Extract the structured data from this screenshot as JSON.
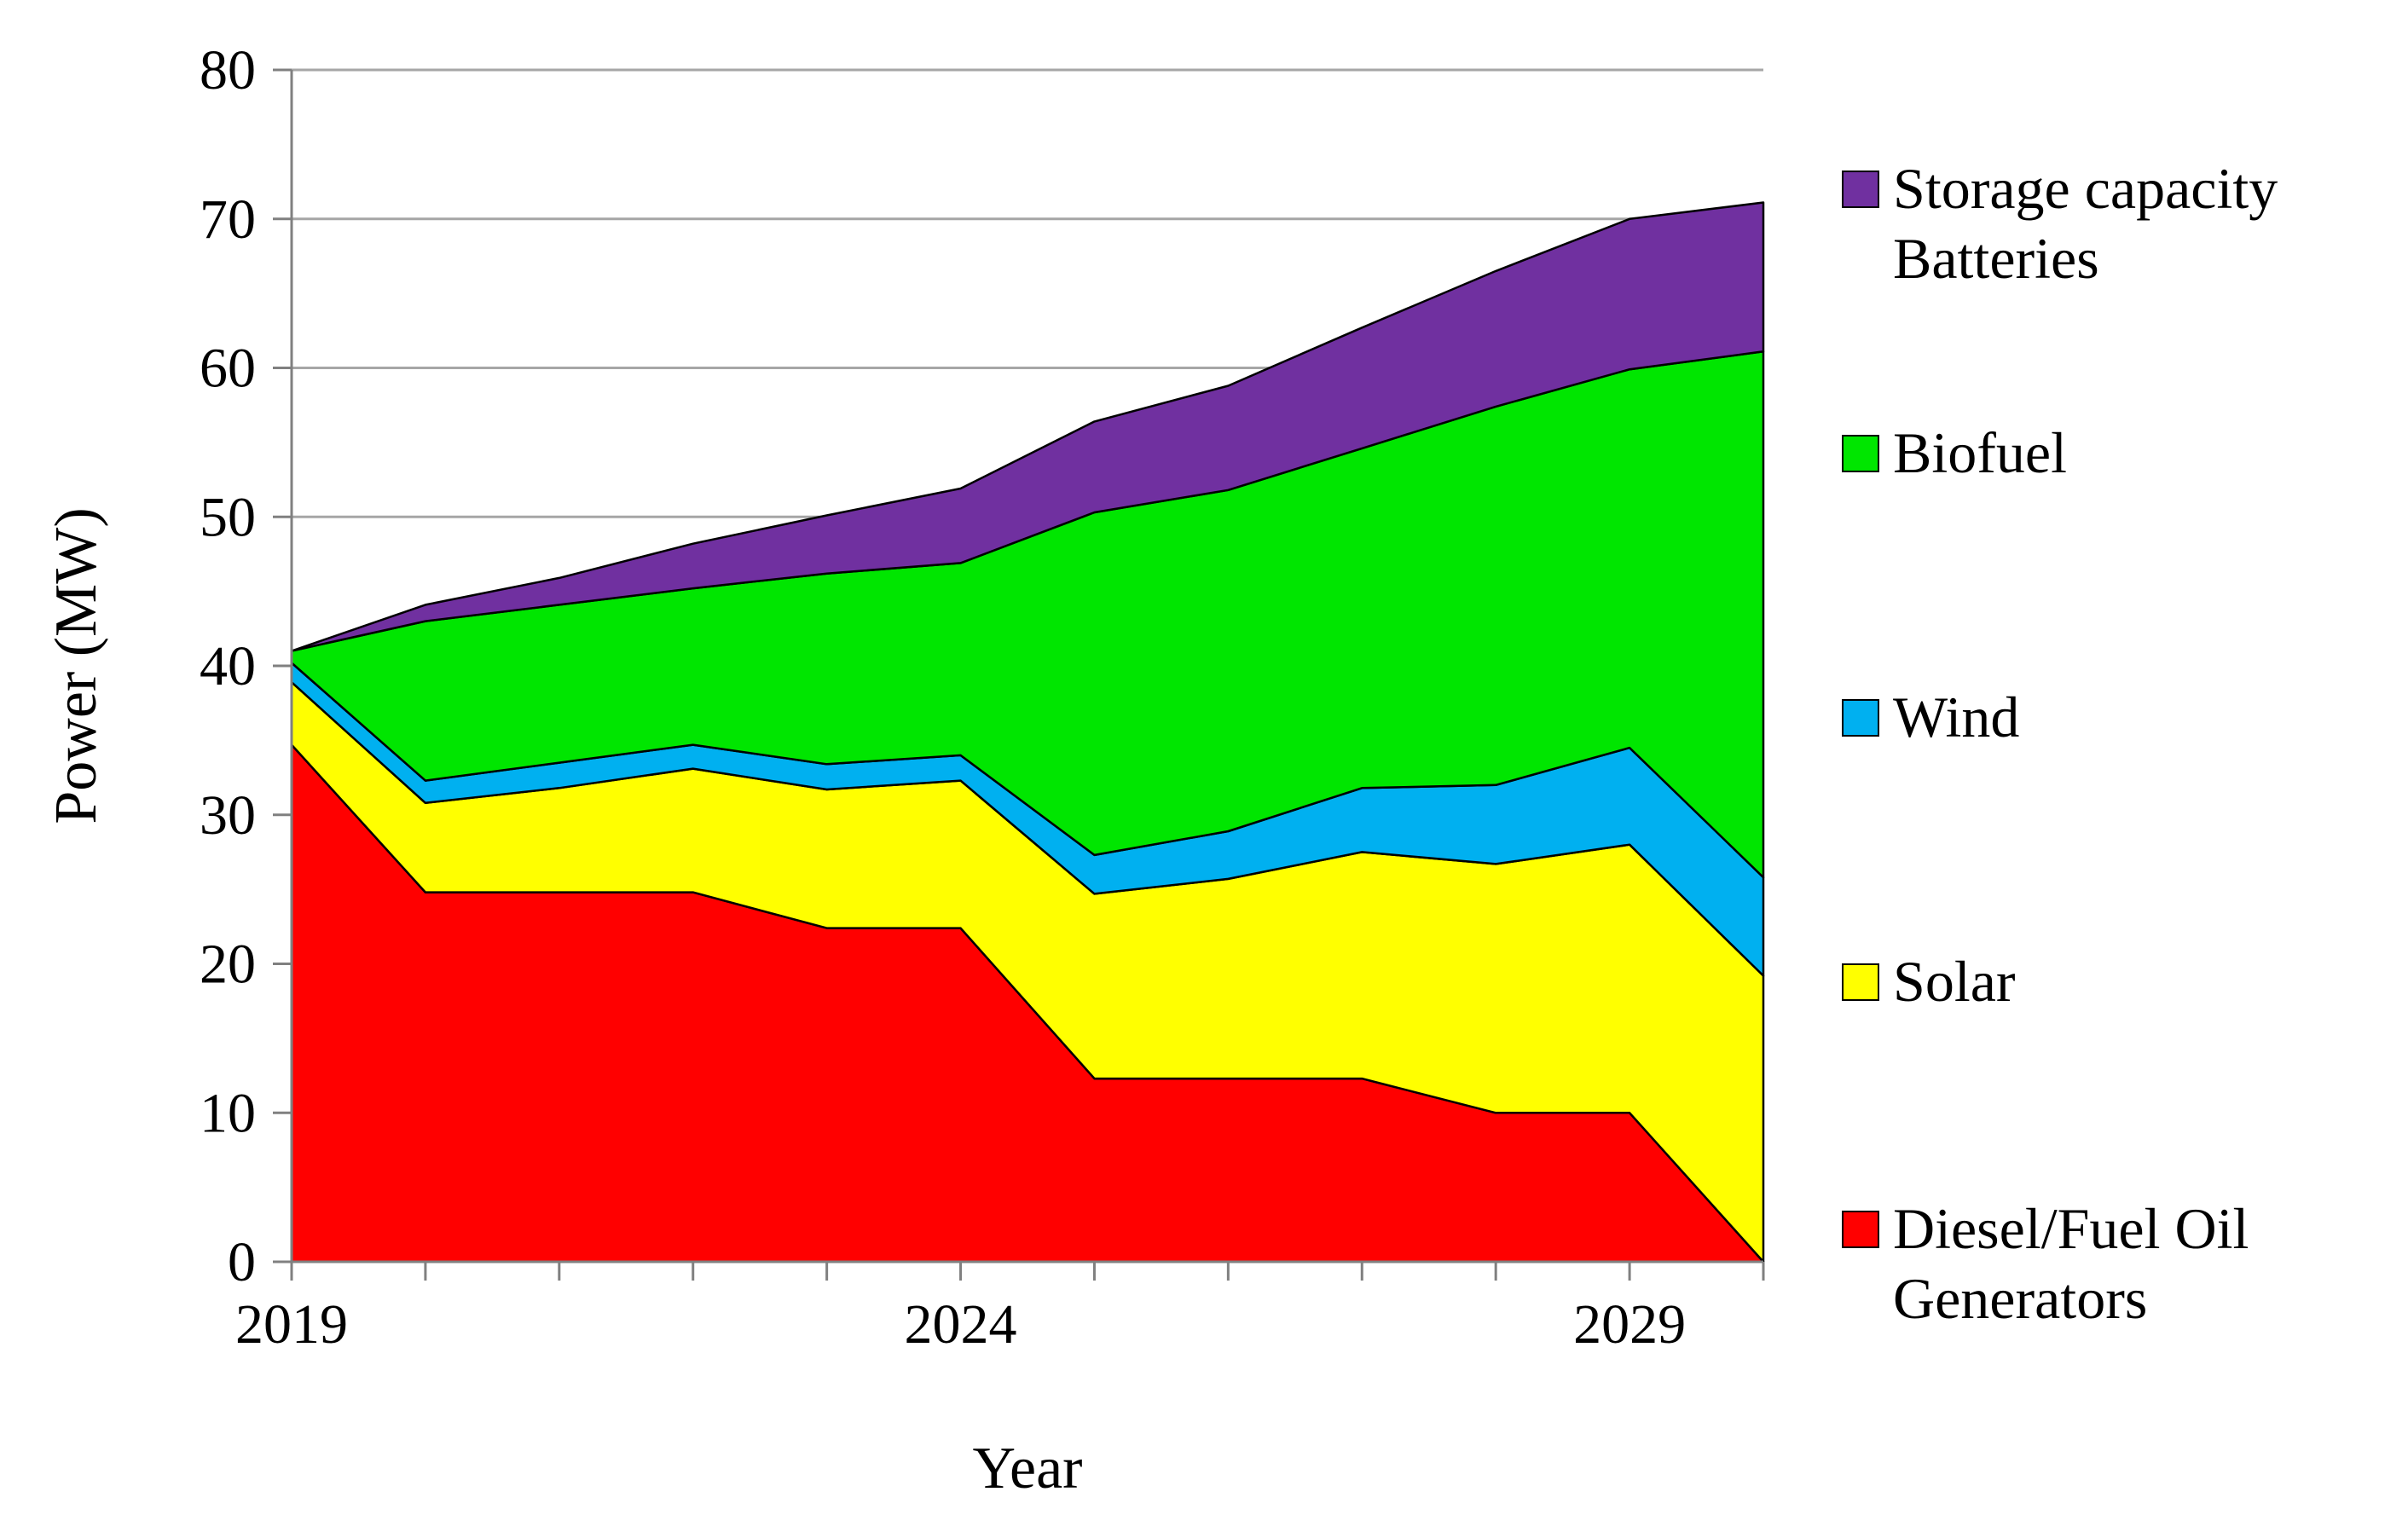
{
  "chart_data": {
    "type": "area",
    "stacked": true,
    "title": "",
    "xlabel": "Year",
    "ylabel": "Power (MW)",
    "x": [
      2019,
      2020,
      2021,
      2022,
      2023,
      2024,
      2025,
      2026,
      2027,
      2028,
      2029,
      2030
    ],
    "xticks_labeled": [
      "2019",
      "2024",
      "2029"
    ],
    "ylim": [
      0,
      80
    ],
    "yticks": [
      "0",
      "10",
      "20",
      "30",
      "40",
      "50",
      "60",
      "70",
      "80"
    ],
    "grid": "horizontal",
    "legend_position": "right",
    "series": [
      {
        "key": "diesel",
        "name": "Diesel/Fuel Oil\nGenerators",
        "color": "#ff0000",
        "values": [
          34.7,
          24.8,
          24.8,
          24.8,
          22.4,
          22.4,
          12.3,
          12.3,
          12.3,
          10.0,
          10.0,
          0.0
        ]
      },
      {
        "key": "solar",
        "name": "Solar",
        "color": "#ffff00",
        "values": [
          4.2,
          6.0,
          7.0,
          8.3,
          9.3,
          9.9,
          12.4,
          13.4,
          15.2,
          16.7,
          18.0,
          19.2
        ]
      },
      {
        "key": "wind",
        "name": "Wind",
        "color": "#00b0f0",
        "values": [
          1.3,
          1.5,
          1.7,
          1.6,
          1.7,
          1.7,
          2.6,
          3.2,
          4.3,
          5.3,
          6.5,
          6.6
        ]
      },
      {
        "key": "biofuel",
        "name": "Biofuel",
        "color": "#00e600",
        "values": [
          0.8,
          10.7,
          10.6,
          10.5,
          12.8,
          12.9,
          23.0,
          22.9,
          22.8,
          25.4,
          25.4,
          35.3
        ]
      },
      {
        "key": "storage",
        "name": "Storage capacity\nBatteries",
        "color": "#7030a0",
        "values": [
          0.0,
          1.1,
          1.8,
          3.0,
          3.9,
          5.0,
          6.1,
          7.0,
          8.1,
          9.1,
          10.1,
          10.0
        ]
      }
    ]
  }
}
